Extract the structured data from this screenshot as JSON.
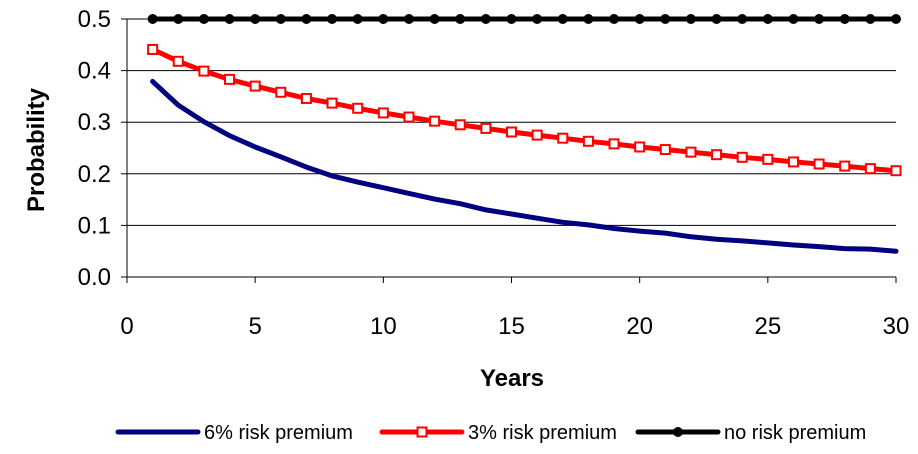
{
  "chart_data": {
    "type": "line",
    "title": "",
    "xlabel": "Years",
    "ylabel": "Probability",
    "xlim": [
      0,
      30
    ],
    "ylim": [
      0.0,
      0.5
    ],
    "x_ticks": [
      "0",
      "5",
      "10",
      "15",
      "20",
      "25",
      "30"
    ],
    "y_ticks": [
      "0.0",
      "0.1",
      "0.2",
      "0.3",
      "0.4",
      "0.5"
    ],
    "grid": "horizontal",
    "legend_position": "bottom",
    "x": [
      1,
      2,
      3,
      4,
      5,
      6,
      7,
      8,
      9,
      10,
      11,
      12,
      13,
      14,
      15,
      16,
      17,
      18,
      19,
      20,
      21,
      22,
      23,
      24,
      25,
      26,
      27,
      28,
      29,
      30
    ],
    "series": [
      {
        "name": "6% risk premium",
        "color": "#000080",
        "marker": "none",
        "values": [
          0.379,
          0.333,
          0.301,
          0.274,
          0.252,
          0.233,
          0.213,
          0.196,
          0.184,
          0.173,
          0.162,
          0.151,
          0.142,
          0.13,
          0.122,
          0.114,
          0.106,
          0.101,
          0.094,
          0.089,
          0.085,
          0.078,
          0.073,
          0.07,
          0.066,
          0.062,
          0.059,
          0.055,
          0.054,
          0.05
        ]
      },
      {
        "name": "3% risk premium",
        "color": "#ff0000",
        "marker": "square",
        "values": [
          0.441,
          0.418,
          0.399,
          0.383,
          0.37,
          0.358,
          0.346,
          0.337,
          0.327,
          0.318,
          0.31,
          0.302,
          0.295,
          0.288,
          0.281,
          0.275,
          0.269,
          0.263,
          0.258,
          0.252,
          0.247,
          0.242,
          0.237,
          0.232,
          0.228,
          0.223,
          0.219,
          0.215,
          0.21,
          0.206
        ]
      },
      {
        "name": "no risk premium",
        "color": "#000000",
        "marker": "circle",
        "values": [
          0.5,
          0.5,
          0.5,
          0.5,
          0.5,
          0.5,
          0.5,
          0.5,
          0.5,
          0.5,
          0.5,
          0.5,
          0.5,
          0.5,
          0.5,
          0.5,
          0.5,
          0.5,
          0.5,
          0.5,
          0.5,
          0.5,
          0.5,
          0.5,
          0.5,
          0.5,
          0.5,
          0.5,
          0.5,
          0.5
        ]
      }
    ]
  }
}
